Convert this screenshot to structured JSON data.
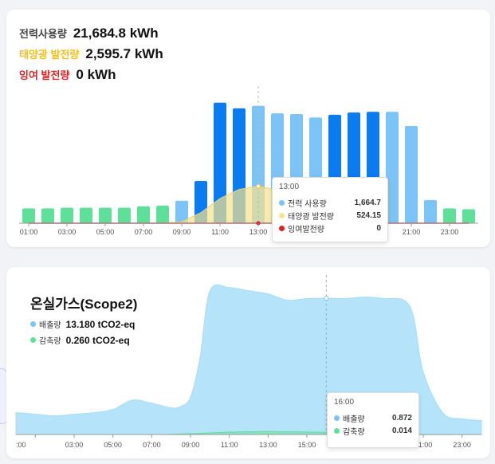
{
  "power_card": {
    "stats": [
      {
        "label": "전력사용량",
        "value": "21,684.8 kWh",
        "color": "#444444"
      },
      {
        "label": "태양광 발전량",
        "value": "2,595.7 kWh",
        "color": "#f2c01d"
      },
      {
        "label": "잉여 발전량",
        "value": "0 kWh",
        "color": "#e02020"
      }
    ],
    "tooltip": {
      "time": "13:00",
      "rows": [
        {
          "name": "전력 사용량",
          "value": "1,664.7",
          "color": "#7cc4f7"
        },
        {
          "name": "태양광 발전량",
          "value": "524.15",
          "color": "#f7e38c"
        },
        {
          "name": "잉여발전량",
          "value": "0",
          "color": "#e02020"
        }
      ]
    }
  },
  "ghg_card": {
    "title": "온실가스(Scope2)",
    "stats": [
      {
        "label": "배출량",
        "value": "13.180 tCO2-eq",
        "color": "#7cc4f7"
      },
      {
        "label": "감축량",
        "value": "0.260 tCO2-eq",
        "color": "#5fe09a"
      }
    ],
    "tooltip": {
      "time": "16:00",
      "rows": [
        {
          "name": "배출량",
          "value": "0.872",
          "color": "#7cc4f7"
        },
        {
          "name": "감축량",
          "value": "0.014",
          "color": "#5fe09a"
        }
      ]
    }
  },
  "chart_data": [
    {
      "type": "bar",
      "title": "",
      "x_tick_labels": [
        "01:00",
        "03:00",
        "05:00",
        "07:00",
        "09:00",
        "11:00",
        "13:00",
        "15:00",
        "17:00",
        "19:00",
        "21:00",
        "23:00"
      ],
      "hours": [
        "01:00",
        "02:00",
        "03:00",
        "04:00",
        "05:00",
        "06:00",
        "07:00",
        "08:00",
        "09:00",
        "10:00",
        "11:00",
        "12:00",
        "13:00",
        "14:00",
        "15:00",
        "16:00",
        "17:00",
        "18:00",
        "19:00",
        "20:00",
        "21:00",
        "22:00",
        "23:00",
        "24:00"
      ],
      "series": [
        {
          "name": "전력 사용량",
          "values": [
            210,
            210,
            220,
            220,
            220,
            220,
            240,
            250,
            320,
            600,
            1710,
            1630,
            1664.7,
            1560,
            1550,
            1500,
            1540,
            1570,
            1580,
            1580,
            1380,
            330,
            210,
            200
          ],
          "colors": [
            "#5fe09a",
            "#5fe09a",
            "#5fe09a",
            "#5fe09a",
            "#5fe09a",
            "#5fe09a",
            "#5fe09a",
            "#5fe09a",
            "#7cc4f7",
            "#0a7cf0",
            "#0a7cf0",
            "#0a7cf0",
            "#7cc4f7",
            "#7cc4f7",
            "#7cc4f7",
            "#7cc4f7",
            "#0a7cf0",
            "#0a7cf0",
            "#0a7cf0",
            "#7cc4f7",
            "#7cc4f7",
            "#7cc4f7",
            "#5fe09a",
            "#5fe09a"
          ]
        },
        {
          "name": "태양광 발전량",
          "values": [
            0,
            0,
            0,
            0,
            0,
            0,
            0,
            0,
            20,
            150,
            350,
            480,
            524.15,
            470,
            360,
            240,
            110,
            20,
            0,
            0,
            0,
            0,
            0,
            0
          ]
        },
        {
          "name": "잉여발전량",
          "values": [
            0,
            0,
            0,
            0,
            0,
            0,
            0,
            0,
            0,
            0,
            0,
            0,
            0,
            0,
            0,
            0,
            0,
            0,
            0,
            0,
            0,
            0,
            0,
            0
          ]
        }
      ],
      "ylim": [
        0,
        1900
      ],
      "highlight": "13:00"
    },
    {
      "type": "area",
      "title": "온실가스(Scope2)",
      "x_tick_labels": [
        ":00",
        "03:00",
        "05:00",
        "07:00",
        "09:00",
        "11:00",
        "13:00",
        "15:00",
        "17:00",
        "19:00",
        "21:00",
        "23:00"
      ],
      "series": [
        {
          "name": "배출량",
          "x": [
            0,
            1,
            2,
            3,
            4,
            5,
            6,
            7,
            8,
            8.5,
            9,
            9.5,
            10,
            11,
            12,
            13,
            14,
            15,
            16,
            17,
            18,
            19,
            20,
            20.5,
            21,
            22,
            23,
            24
          ],
          "values": [
            0.14,
            0.13,
            0.12,
            0.13,
            0.14,
            0.16,
            0.22,
            0.2,
            0.17,
            0.18,
            0.24,
            0.5,
            0.92,
            0.94,
            0.92,
            0.9,
            0.86,
            0.87,
            0.872,
            0.87,
            0.88,
            0.87,
            0.86,
            0.75,
            0.4,
            0.14,
            0.1,
            0.09
          ]
        },
        {
          "name": "감축량",
          "x": [
            0,
            7,
            8,
            9,
            10,
            11,
            12,
            13,
            14,
            15,
            16,
            17,
            18,
            24
          ],
          "values": [
            0,
            0,
            0.002,
            0.005,
            0.01,
            0.015,
            0.018,
            0.019,
            0.018,
            0.016,
            0.014,
            0.006,
            0,
            0
          ]
        }
      ],
      "ylim": [
        0,
        1.0
      ],
      "highlight": "16:00"
    }
  ]
}
